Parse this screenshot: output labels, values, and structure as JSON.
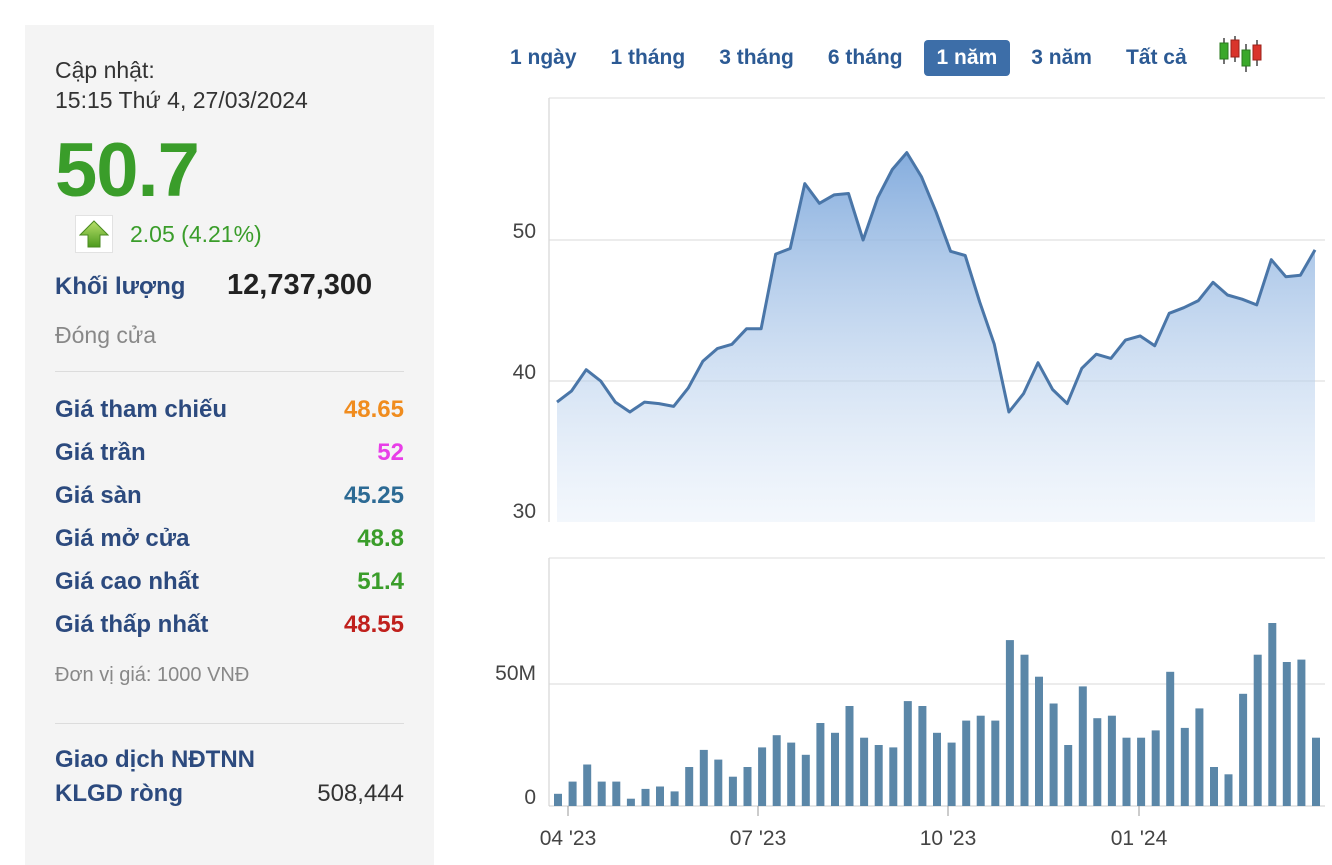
{
  "panel": {
    "update_label": "Cập nhật:",
    "update_time": "15:15 Thứ 4, 27/03/2024",
    "price": "50.7",
    "change": "2.05 (4.21%)",
    "volume_label": "Khối lượng",
    "volume_value": "12,737,300",
    "status": "Đóng cửa",
    "stats": [
      {
        "label": "Giá tham chiếu",
        "value": "48.65",
        "color": "#f08c1e"
      },
      {
        "label": "Giá trần",
        "value": "52",
        "color": "#e83ee8"
      },
      {
        "label": "Giá sàn",
        "value": "45.25",
        "color": "#2c6a94"
      },
      {
        "label": "Giá mở cửa",
        "value": "48.8",
        "color": "#3a9d2a"
      },
      {
        "label": "Giá cao nhất",
        "value": "51.4",
        "color": "#3a9d2a"
      },
      {
        "label": "Giá thấp nhất",
        "value": "48.55",
        "color": "#c0201c"
      }
    ],
    "unit": "Đơn vị giá: 1000 VNĐ",
    "foreign_title": "Giao dịch NĐTNN",
    "foreign_row": {
      "label": "KLGD ròng",
      "value": "508,444"
    }
  },
  "ranges": [
    "1 ngày",
    "1 tháng",
    "3 tháng",
    "6 tháng",
    "1 năm",
    "3 năm",
    "Tất cả"
  ],
  "active_range": "1 năm",
  "candle_icon": "candlestick-icon",
  "colors": {
    "accent": "#3d6ea8",
    "line": "#4a76a8",
    "bar": "#5b87a8",
    "up": "#3a9d2a"
  },
  "chart_data": [
    {
      "type": "area",
      "title": "",
      "x_tick_labels": [
        "04 '23",
        "07 '23",
        "10 '23",
        "01 '24"
      ],
      "y_ticks": [
        30,
        40,
        50
      ],
      "ylim": [
        30,
        60
      ],
      "grid": true,
      "series": [
        {
          "values": [
            38.5,
            39.3,
            40.8,
            40.0,
            38.5,
            37.8,
            38.5,
            38.4,
            38.2,
            39.5,
            41.4,
            42.3,
            42.6,
            43.7,
            43.7,
            49.0,
            49.4,
            54.0,
            52.6,
            53.2,
            53.3,
            50.0,
            53.0,
            55.0,
            56.2,
            54.5,
            52.0,
            49.2,
            48.9,
            45.6,
            42.6,
            37.8,
            39.1,
            41.3,
            39.4,
            38.4,
            40.9,
            41.9,
            41.6,
            42.9,
            43.2,
            42.5,
            44.8,
            45.2,
            45.7,
            47.0,
            46.1,
            45.8,
            45.4,
            48.6,
            47.4,
            47.5,
            49.3
          ]
        }
      ]
    },
    {
      "type": "bar",
      "title": "",
      "y_tick_labels": [
        "0",
        "50M"
      ],
      "y_ticks": [
        0,
        50
      ],
      "ylim": [
        0,
        95
      ],
      "grid": true,
      "series": [
        {
          "values": [
            5,
            10,
            17,
            10,
            10,
            3,
            7,
            8,
            6,
            16,
            23,
            19,
            12,
            16,
            24,
            29,
            26,
            21,
            34,
            30,
            41,
            28,
            25,
            24,
            43,
            41,
            30,
            26,
            35,
            37,
            35,
            68,
            62,
            53,
            42,
            25,
            49,
            36,
            37,
            28,
            28,
            31,
            55,
            32,
            40,
            16,
            13,
            46,
            62,
            75,
            59,
            60,
            28
          ]
        }
      ]
    }
  ]
}
